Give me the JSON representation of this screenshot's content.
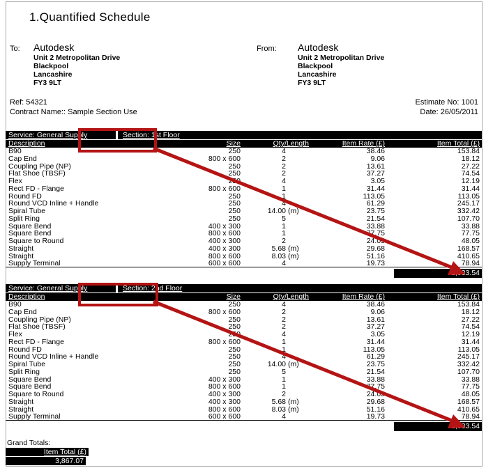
{
  "title": "1.Quantified Schedule",
  "to": {
    "label": "To:",
    "name": "Autodesk",
    "address": [
      "Unit 2 Metropolitan Drive",
      "Blackpool",
      "Lancashire",
      "FY3 9LT"
    ]
  },
  "from": {
    "label": "From:",
    "name": "Autodesk",
    "address": [
      "Unit 2 Metropolitan Drive",
      "Blackpool",
      "Lancashire",
      "FY3 9LT"
    ]
  },
  "meta": {
    "ref": "Ref: 54321",
    "contract": "Contract Name:: Sample Section Use",
    "estimate": "Estimate No: 1001",
    "date": "Date: 26/05/2011"
  },
  "columns": [
    "Description",
    "Size",
    "Qty/Length",
    "Item Rate (£)",
    "Item Total (£)"
  ],
  "sections": [
    {
      "service": "Service: General Supply",
      "section": "Section: 1st Floor",
      "total": "1,933.54",
      "rows": [
        [
          "B90",
          "250",
          "4",
          "",
          "38.46",
          "153.84"
        ],
        [
          "Cap End",
          "800 x 600",
          "2",
          "",
          "9.06",
          "18.12"
        ],
        [
          "Coupling Pipe (NP)",
          "250",
          "2",
          "",
          "13.61",
          "27.22"
        ],
        [
          "Flat Shoe (TBSF)",
          "250",
          "2",
          "",
          "37.27",
          "74.54"
        ],
        [
          "Flex",
          "250",
          "4",
          "",
          "3.05",
          "12.19"
        ],
        [
          "Rect FD - Flange",
          "800 x 600",
          "1",
          "",
          "31.44",
          "31.44"
        ],
        [
          "Round FD",
          "250",
          "1",
          "",
          "113.05",
          "113.05"
        ],
        [
          "Round VCD Inline + Handle",
          "250",
          "4",
          "",
          "61.29",
          "245.17"
        ],
        [
          "Spiral Tube",
          "250",
          "14.00",
          "(m)",
          "23.75",
          "332.42"
        ],
        [
          "Split Ring",
          "250",
          "5",
          "",
          "21.54",
          "107.70"
        ],
        [
          "Square Bend",
          "400 x 300",
          "1",
          "",
          "33.88",
          "33.88"
        ],
        [
          "Square Bend",
          "800 x 600",
          "1",
          "",
          "77.75",
          "77.75"
        ],
        [
          "Square to Round",
          "400 x 300",
          "2",
          "",
          "24.03",
          "48.05"
        ],
        [
          "Straight",
          "400 x 300",
          "5.68",
          "(m)",
          "29.68",
          "168.57"
        ],
        [
          "Straight",
          "800 x 600",
          "8.03",
          "(m)",
          "51.16",
          "410.65"
        ],
        [
          "Supply Terminal",
          "600 x 600",
          "4",
          "",
          "19.73",
          "78.94"
        ]
      ]
    },
    {
      "service": "Service: General Supply",
      "section": "Section: 2nd Floor",
      "total": "1,933.54",
      "rows": [
        [
          "B90",
          "250",
          "4",
          "",
          "38.46",
          "153.84"
        ],
        [
          "Cap End",
          "800 x 600",
          "2",
          "",
          "9.06",
          "18.12"
        ],
        [
          "Coupling Pipe (NP)",
          "250",
          "2",
          "",
          "13.61",
          "27.22"
        ],
        [
          "Flat Shoe (TBSF)",
          "250",
          "2",
          "",
          "37.27",
          "74.54"
        ],
        [
          "Flex",
          "250",
          "4",
          "",
          "3.05",
          "12.19"
        ],
        [
          "Rect FD - Flange",
          "800 x 600",
          "1",
          "",
          "31.44",
          "31.44"
        ],
        [
          "Round FD",
          "250",
          "1",
          "",
          "113.05",
          "113.05"
        ],
        [
          "Round VCD Inline + Handle",
          "250",
          "4",
          "",
          "61.29",
          "245.17"
        ],
        [
          "Spiral Tube",
          "250",
          "14.00",
          "(m)",
          "23.75",
          "332.42"
        ],
        [
          "Split Ring",
          "250",
          "5",
          "",
          "21.54",
          "107.70"
        ],
        [
          "Square Bend",
          "400 x 300",
          "1",
          "",
          "33.88",
          "33.88"
        ],
        [
          "Square Bend",
          "800 x 600",
          "1",
          "",
          "77.75",
          "77.75"
        ],
        [
          "Square to Round",
          "400 x 300",
          "2",
          "",
          "24.03",
          "48.05"
        ],
        [
          "Straight",
          "400 x 300",
          "5.68",
          "(m)",
          "29.68",
          "168.57"
        ],
        [
          "Straight",
          "800 x 600",
          "8.03",
          "(m)",
          "51.16",
          "410.65"
        ],
        [
          "Supply Terminal",
          "600 x 600",
          "4",
          "",
          "19.73",
          "78.94"
        ]
      ]
    }
  ],
  "grand_totals": {
    "label": "Grand Totals:",
    "column": "Item Total (£)",
    "value": "3,867.07"
  },
  "annotation": {
    "color": "#b41414",
    "highlight_1": "Section: 1st Floor",
    "highlight_2": "Section: 2nd Floor"
  }
}
